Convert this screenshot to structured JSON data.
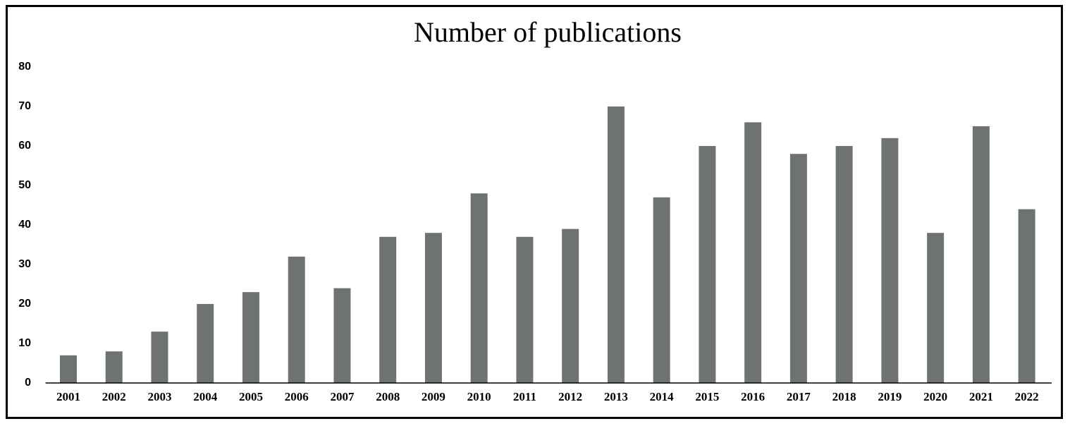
{
  "chart_data": {
    "type": "bar",
    "title": "Number of publications",
    "categories": [
      "2001",
      "2002",
      "2003",
      "2004",
      "2005",
      "2006",
      "2007",
      "2008",
      "2009",
      "2010",
      "2011",
      "2012",
      "2013",
      "2014",
      "2015",
      "2016",
      "2017",
      "2018",
      "2019",
      "2020",
      "2021",
      "2022"
    ],
    "values": [
      7,
      8,
      13,
      20,
      23,
      32,
      24,
      37,
      38,
      48,
      37,
      39,
      70,
      47,
      60,
      66,
      58,
      60,
      62,
      38,
      65,
      44
    ],
    "color": "#6f7370",
    "ylim": [
      0,
      80
    ],
    "yticks": [
      0,
      10,
      20,
      30,
      40,
      50,
      60,
      70,
      80
    ],
    "grid": false
  }
}
